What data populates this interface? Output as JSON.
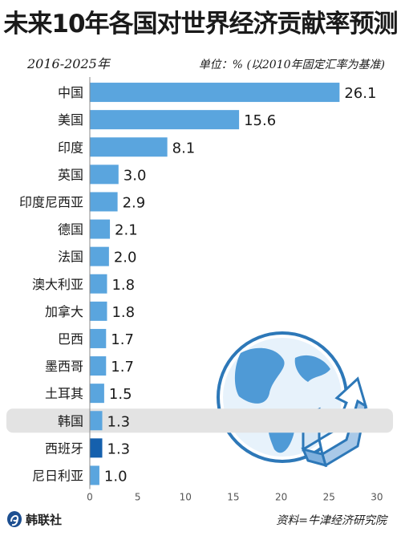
{
  "header": {
    "title": "未来10年各国对世界经济贡献率预测",
    "period": "2016-2025年",
    "unit": "单位：% (以2010年固定汇率为基准)"
  },
  "footer": {
    "agency": "韩联社",
    "source": "资料=牛津经济研究院"
  },
  "colors": {
    "bar": "#5aa5de",
    "highlight_bar": "#1560ad",
    "highlight_band": "#e3e3e3",
    "text": "#1a1a1a"
  },
  "chart_data": {
    "type": "bar",
    "orientation": "horizontal",
    "categories": [
      "中国",
      "美国",
      "印度",
      "英国",
      "印度尼西亚",
      "德国",
      "法国",
      "澳大利亚",
      "加拿大",
      "巴西",
      "墨西哥",
      "土耳其",
      "韩国",
      "西班牙",
      "尼日利亚"
    ],
    "values": [
      26.1,
      15.6,
      8.1,
      3.0,
      2.9,
      2.1,
      2.0,
      1.8,
      1.8,
      1.7,
      1.7,
      1.5,
      1.3,
      1.3,
      1.0
    ],
    "value_labels": [
      "26.1",
      "15.6",
      "8.1",
      "3.0",
      "2.9",
      "2.1",
      "2.0",
      "1.8",
      "1.8",
      "1.7",
      "1.7",
      "1.5",
      "1.3",
      "1.3",
      "1.0"
    ],
    "highlight": "韩国",
    "x_ticks": [
      "0",
      "5",
      "10",
      "15",
      "20",
      "25",
      "30"
    ],
    "x_tick_values": [
      0,
      5,
      10,
      15,
      20,
      25,
      30
    ],
    "xlim": [
      0,
      30
    ],
    "grid": false
  }
}
